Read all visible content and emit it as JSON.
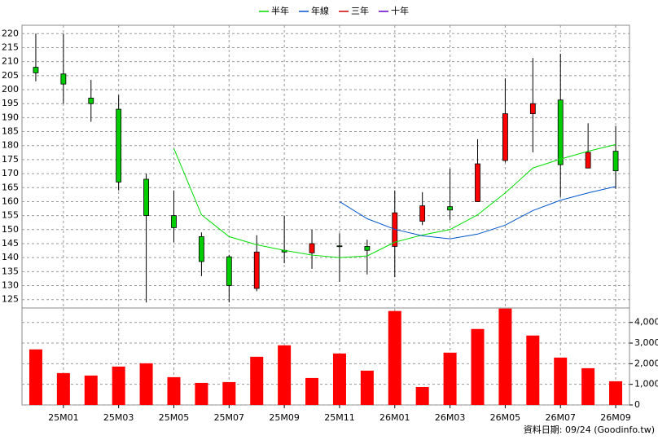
{
  "chart_data": [
    {
      "type": "candlestick",
      "open": [
        208,
        205.6,
        197,
        193,
        168,
        155,
        147.5,
        140.3,
        129,
        142.6,
        141.7,
        144.2,
        144,
        144,
        153,
        158.2,
        160,
        174.7,
        191.4,
        196.3,
        172,
        178
      ],
      "high": [
        220,
        220,
        203.5,
        198,
        170,
        164,
        149,
        141,
        148,
        155,
        150,
        148.7,
        146.4,
        164,
        163.4,
        171.8,
        182.3,
        204,
        211.3,
        212.8,
        188,
        187
      ],
      "low": [
        203,
        195,
        188.5,
        164,
        124,
        145.5,
        133.4,
        124,
        128,
        138,
        136,
        131.3,
        134,
        133,
        151.6,
        153.3,
        160,
        174,
        177.6,
        161.7,
        172,
        164.6
      ],
      "close": [
        206,
        202,
        195,
        167,
        155,
        150.7,
        138.6,
        130,
        142,
        142,
        145,
        144,
        142.6,
        156,
        158.5,
        157,
        173.5,
        191.4,
        195,
        173.2,
        177.6,
        171
      ],
      "up_color": "#ff0000",
      "down_color": "#00cc00",
      "series": [
        {
          "name": "半年",
          "color": "#00dd00",
          "values": [
            null,
            null,
            null,
            null,
            null,
            179,
            155.3,
            147.5,
            144.6,
            142.6,
            140.9,
            140,
            140.6,
            145.5,
            148.1,
            150,
            155.3,
            163.1,
            172,
            175.2,
            178,
            180.4
          ]
        },
        {
          "name": "年線",
          "color": "#0055cc",
          "values": [
            null,
            null,
            null,
            null,
            null,
            null,
            null,
            null,
            null,
            null,
            null,
            160,
            153.9,
            150.1,
            147.8,
            146.7,
            148.4,
            151.6,
            156.8,
            160.5,
            163.1,
            165.4
          ]
        },
        {
          "name": "三年",
          "color": "#cc0000",
          "values": [
            null,
            null,
            null,
            null,
            null,
            null,
            null,
            null,
            null,
            null,
            null,
            null,
            null,
            null,
            null,
            null,
            null,
            null,
            null,
            null,
            null,
            null
          ]
        },
        {
          "name": "十年",
          "color": "#6600cc",
          "values": [
            null,
            null,
            null,
            null,
            null,
            null,
            null,
            null,
            null,
            null,
            null,
            null,
            null,
            null,
            null,
            null,
            null,
            null,
            null,
            null,
            null,
            null
          ]
        }
      ],
      "legend": "top",
      "ylim": [
        122,
        223
      ],
      "yticks": [
        125,
        130,
        135,
        140,
        145,
        150,
        155,
        160,
        165,
        170,
        175,
        180,
        185,
        190,
        195,
        200,
        205,
        210,
        215,
        220
      ],
      "grid": true
    },
    {
      "type": "bar",
      "categories": [
        null,
        "25M01",
        null,
        "25M03",
        null,
        "25M05",
        null,
        "25M07",
        null,
        "25M09",
        null,
        "25M11",
        null,
        "26M01",
        null,
        "26M03",
        null,
        "26M05",
        null,
        "26M07",
        null,
        "26M09"
      ],
      "values": [
        2693,
        1545,
        1426,
        1861,
        2020,
        1347,
        1069,
        1109,
        2337,
        2891,
        1307,
        2495,
        1663,
        4554,
        871,
        2535,
        3683,
        4673,
        3366,
        2297,
        1782,
        1149
      ],
      "color": "#ff0000",
      "ylim": [
        0,
        4700
      ],
      "yticks": [
        0,
        {
          "value": 1000,
          "label": "1,000"
        },
        {
          "value": 2000,
          "label": "2,000"
        },
        {
          "value": 3000,
          "label": "3,000"
        },
        {
          "value": 4000,
          "label": "4,000"
        }
      ],
      "grid": true
    }
  ],
  "footer": "資料日期: 09/24  (Goodinfo.tw)"
}
